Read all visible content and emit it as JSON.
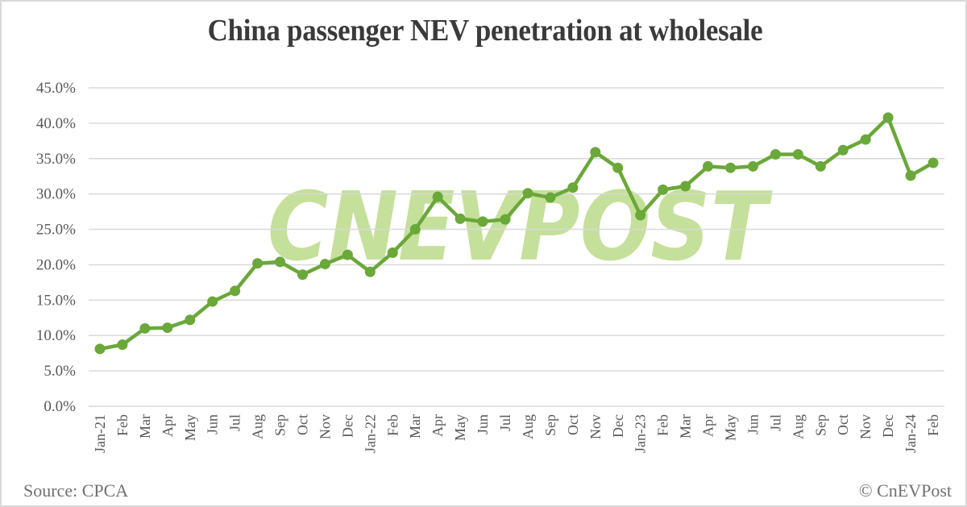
{
  "chart_data": {
    "type": "line",
    "title": "China passenger NEV penetration at wholesale",
    "xlabel": "",
    "ylabel": "",
    "ylim": [
      0,
      45
    ],
    "yticks": [
      "0.0%",
      "5.0%",
      "10.0%",
      "15.0%",
      "20.0%",
      "25.0%",
      "30.0%",
      "35.0%",
      "40.0%",
      "45.0%"
    ],
    "ytick_values": [
      0,
      5,
      10,
      15,
      20,
      25,
      30,
      35,
      40,
      45
    ],
    "grid": true,
    "legend": "none",
    "categories": [
      "Jan-21",
      "Feb",
      "Mar",
      "Apr",
      "May",
      "Jun",
      "Jul",
      "Aug",
      "Sep",
      "Oct",
      "Nov",
      "Dec",
      "Jan-22",
      "Feb",
      "Mar",
      "Apr",
      "May",
      "Jun",
      "Jul",
      "Aug",
      "Sep",
      "Oct",
      "Nov",
      "Dec",
      "Jan-23",
      "Feb",
      "Mar",
      "Apr",
      "May",
      "Jun",
      "Jul",
      "Aug",
      "Sep",
      "Oct",
      "Nov",
      "Dec",
      "Jan-24",
      "Feb"
    ],
    "series": [
      {
        "name": "NEV penetration",
        "color": "#6aa839",
        "values": [
          8.1,
          8.7,
          11.0,
          11.1,
          12.2,
          14.8,
          16.3,
          20.2,
          20.4,
          18.6,
          20.1,
          21.4,
          19.0,
          21.7,
          25.0,
          29.6,
          26.5,
          26.1,
          26.4,
          30.1,
          29.5,
          30.9,
          35.9,
          33.7,
          27.0,
          30.6,
          31.1,
          33.9,
          33.7,
          33.9,
          35.6,
          35.6,
          33.9,
          36.2,
          37.7,
          40.8,
          32.6,
          34.4
        ]
      }
    ]
  },
  "footer": {
    "source": "Source: CPCA",
    "copyright": "© CnEVPost"
  },
  "watermark": {
    "text": "CNEVPOST",
    "color": "#c5e09a"
  }
}
